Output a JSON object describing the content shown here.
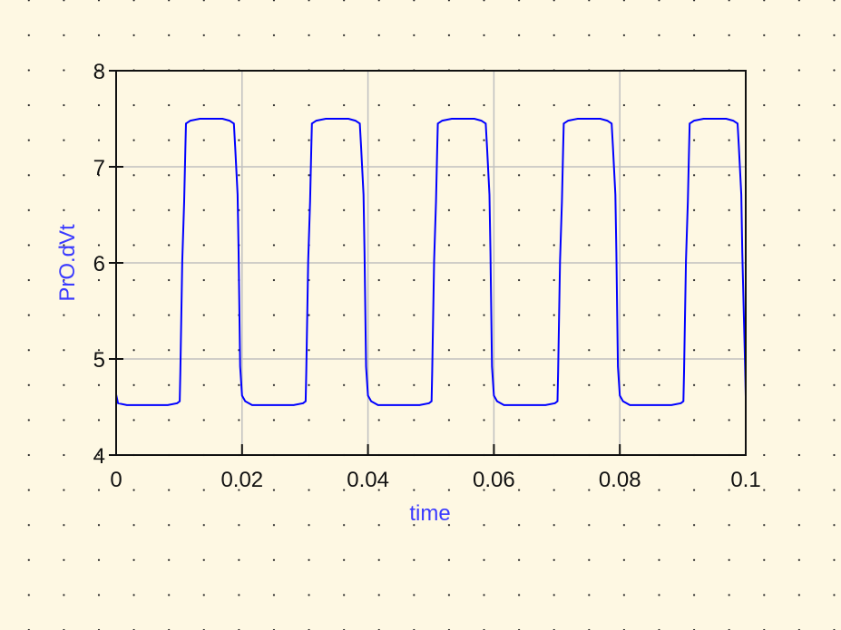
{
  "chart_data": {
    "type": "line",
    "title": "",
    "xlabel": "time",
    "ylabel": "PrO.dVt",
    "xlim": [
      0,
      0.1
    ],
    "ylim": [
      4,
      8
    ],
    "xticks": [
      0,
      0.02,
      0.04,
      0.06,
      0.08,
      0.1
    ],
    "xtick_labels": [
      "0",
      "0.02",
      "0.04",
      "0.06",
      "0.08",
      "0.1"
    ],
    "yticks": [
      4,
      5,
      6,
      7,
      8
    ],
    "ytick_labels": [
      "4",
      "5",
      "6",
      "7",
      "8"
    ],
    "grid": true,
    "colors": {
      "series": "#0000ff",
      "grid": "#c0c0c0",
      "axis": "#000000",
      "labels": "#3a3aff",
      "background": "#fef8e3"
    },
    "series": [
      {
        "x": [
          0,
          0.0003,
          0.0017,
          0.0082,
          0.0097,
          0.0101,
          0.0102,
          0.0105,
          0.0108,
          0.011,
          0.0111,
          0.0118,
          0.0133,
          0.0169,
          0.018,
          0.0187,
          0.0189,
          0.0193,
          0.01945,
          0.0197,
          0.02,
          0.0205,
          0.0216,
          0.0282,
          0.0297,
          0.0301,
          0.0302,
          0.0305,
          0.0308,
          0.031,
          0.0311,
          0.0318,
          0.0333,
          0.0369,
          0.038,
          0.0387,
          0.0389,
          0.0393,
          0.03945,
          0.0397,
          0.04,
          0.0405,
          0.0416,
          0.0482,
          0.0497,
          0.0501,
          0.0502,
          0.0505,
          0.0508,
          0.051,
          0.0511,
          0.0518,
          0.0533,
          0.0569,
          0.058,
          0.0587,
          0.0589,
          0.0593,
          0.05945,
          0.0597,
          0.06,
          0.0605,
          0.0616,
          0.0682,
          0.0697,
          0.0701,
          0.0702,
          0.0705,
          0.0708,
          0.071,
          0.0711,
          0.0718,
          0.0733,
          0.0769,
          0.078,
          0.0787,
          0.0789,
          0.0793,
          0.07945,
          0.0797,
          0.08,
          0.0805,
          0.0816,
          0.0882,
          0.0897,
          0.0901,
          0.0902,
          0.0905,
          0.0908,
          0.091,
          0.0911,
          0.0918,
          0.0933,
          0.0969,
          0.098,
          0.0987,
          0.0989,
          0.0993,
          0.09945,
          0.0999,
          0.1
        ],
        "y": [
          4.63,
          4.54,
          4.52,
          4.52,
          4.54,
          4.56,
          4.87,
          6.02,
          6.64,
          7.18,
          7.45,
          7.48,
          7.5,
          7.5,
          7.48,
          7.45,
          7.21,
          6.71,
          6.11,
          4.92,
          4.62,
          4.56,
          4.52,
          4.52,
          4.54,
          4.56,
          4.87,
          6.02,
          6.64,
          7.18,
          7.45,
          7.48,
          7.5,
          7.5,
          7.48,
          7.45,
          7.21,
          6.71,
          6.11,
          4.92,
          4.62,
          4.56,
          4.52,
          4.52,
          4.54,
          4.56,
          4.87,
          6.02,
          6.64,
          7.18,
          7.45,
          7.48,
          7.5,
          7.5,
          7.48,
          7.45,
          7.21,
          6.71,
          6.11,
          4.92,
          4.62,
          4.56,
          4.52,
          4.52,
          4.54,
          4.56,
          4.87,
          6.02,
          6.64,
          7.18,
          7.45,
          7.48,
          7.5,
          7.5,
          7.48,
          7.45,
          7.21,
          6.71,
          6.11,
          4.92,
          4.62,
          4.56,
          4.52,
          4.52,
          4.54,
          4.56,
          4.87,
          6.02,
          6.64,
          7.18,
          7.45,
          7.48,
          7.5,
          7.5,
          7.48,
          7.45,
          7.21,
          6.71,
          6.11,
          4.92,
          4.61
        ]
      }
    ]
  }
}
